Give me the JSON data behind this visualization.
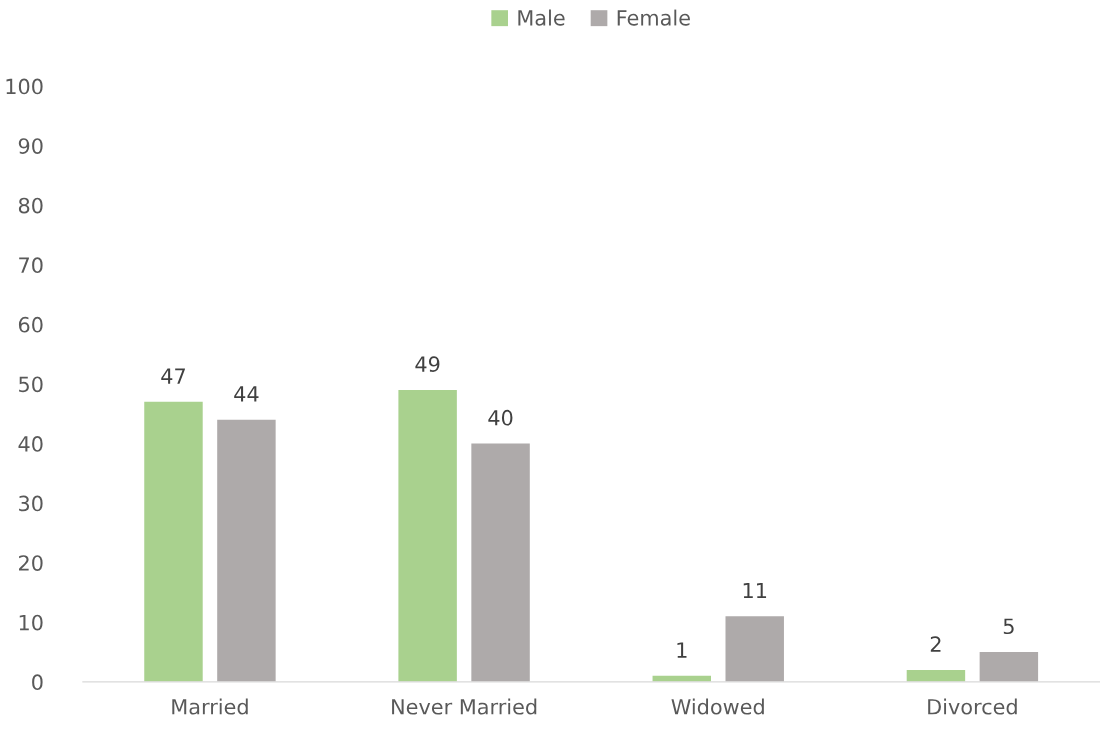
{
  "chart_data": {
    "type": "bar",
    "categories": [
      "Married",
      "Never Married",
      "Widowed",
      "Divorced"
    ],
    "series": [
      {
        "name": "Male",
        "color": "#a9d18e",
        "values": [
          47,
          49,
          1,
          2
        ]
      },
      {
        "name": "Female",
        "color": "#aeaaaa",
        "values": [
          44,
          40,
          11,
          5
        ]
      }
    ],
    "ylim": [
      0,
      100
    ],
    "yticks": [
      0,
      10,
      20,
      30,
      40,
      50,
      60,
      70,
      80,
      90,
      100
    ],
    "data_labels": true,
    "grid": false,
    "legend": "top"
  }
}
